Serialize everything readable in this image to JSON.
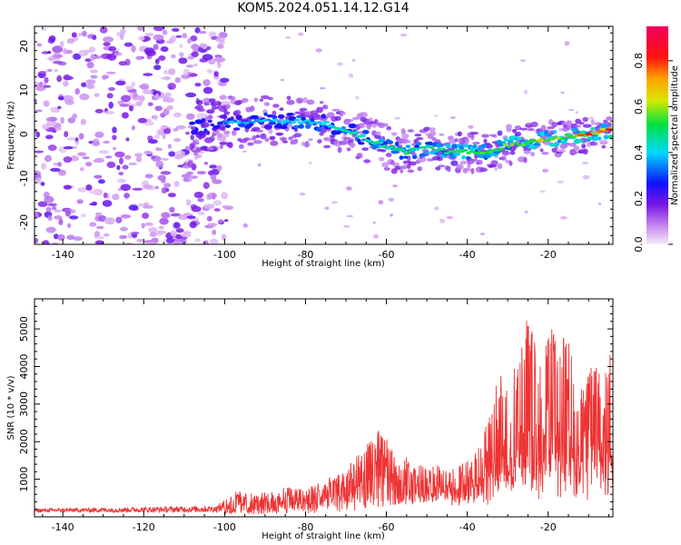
{
  "title": "KOM5.2024.051.14.12.G14",
  "colors": {
    "snr_line": "#ee3333",
    "axes": "#000000",
    "background": "#ffffff"
  },
  "chart_data": [
    {
      "type": "heatmap",
      "name": "spectrogram",
      "xlabel": "Height of straight line (km)",
      "ylabel": "Frequency (Hz)",
      "xlim": [
        -147,
        -4
      ],
      "ylim": [
        -25,
        24.5
      ],
      "x_ticks": [
        -140,
        -120,
        -100,
        -80,
        -60,
        -40,
        -20
      ],
      "x_tick_labels": [
        "-140",
        "-120",
        "-100",
        "-80",
        "-60",
        "-40",
        "-20"
      ],
      "y_ticks": [
        20,
        10,
        0,
        -10,
        -20
      ],
      "y_tick_labels": [
        "20",
        "10",
        "0",
        "-10",
        "-20"
      ],
      "ridge": {
        "x": [
          -107,
          -100,
          -90,
          -80,
          -75,
          -70,
          -65,
          -60,
          -55,
          -50,
          -45,
          -40,
          -35,
          -30,
          -25,
          -20,
          -15,
          -10,
          -5
        ],
        "y": [
          1.5,
          2.5,
          3,
          3,
          2.5,
          1,
          -1,
          -3,
          -4,
          -3,
          -4,
          -4,
          -4,
          -2.5,
          -2,
          -1,
          -0.5,
          0,
          1
        ]
      },
      "colorbar": {
        "label": "Normalized spectral amplitude",
        "range": [
          0,
          0.95
        ],
        "ticks": [
          0.0,
          0.2,
          0.4,
          0.6,
          0.8
        ],
        "tick_labels": [
          "0.0",
          "0.2",
          "0.4",
          "0.6",
          "0.8"
        ],
        "colormap": "purple-blue-cyan-green-yellow-red-magenta"
      },
      "grid": false
    },
    {
      "type": "line",
      "name": "snr",
      "xlabel": "Height of straight line (km)",
      "ylabel": "SNR (10 * v/v)",
      "xlim": [
        -147,
        -4
      ],
      "ylim": [
        0,
        5800
      ],
      "x_ticks": [
        -140,
        -120,
        -100,
        -80,
        -60,
        -40,
        -20
      ],
      "x_tick_labels": [
        "-140",
        "-120",
        "-100",
        "-80",
        "-60",
        "-40",
        "-20"
      ],
      "y_ticks": [
        1000,
        2000,
        3000,
        4000,
        5000
      ],
      "y_tick_labels": [
        "1000",
        "2000",
        "3000",
        "4000",
        "5000"
      ],
      "envelope": {
        "x": [
          -147,
          -120,
          -102,
          -97,
          -92,
          -85,
          -80,
          -75,
          -70,
          -65,
          -62,
          -60,
          -57,
          -55,
          -50,
          -47,
          -45,
          -40,
          -37,
          -34,
          -32,
          -30,
          -27,
          -25,
          -22,
          -20,
          -17,
          -15,
          -12,
          -10,
          -8,
          -6,
          -4
        ],
        "y": [
          220,
          260,
          300,
          700,
          600,
          800,
          800,
          1000,
          1300,
          1900,
          2300,
          2300,
          1500,
          1600,
          1300,
          1400,
          1200,
          1500,
          2000,
          2800,
          4300,
          3600,
          4400,
          5600,
          4500,
          5200,
          5100,
          4700,
          3500,
          4100,
          4400,
          4200,
          4700
        ]
      },
      "grid": false,
      "legend": "none"
    }
  ]
}
